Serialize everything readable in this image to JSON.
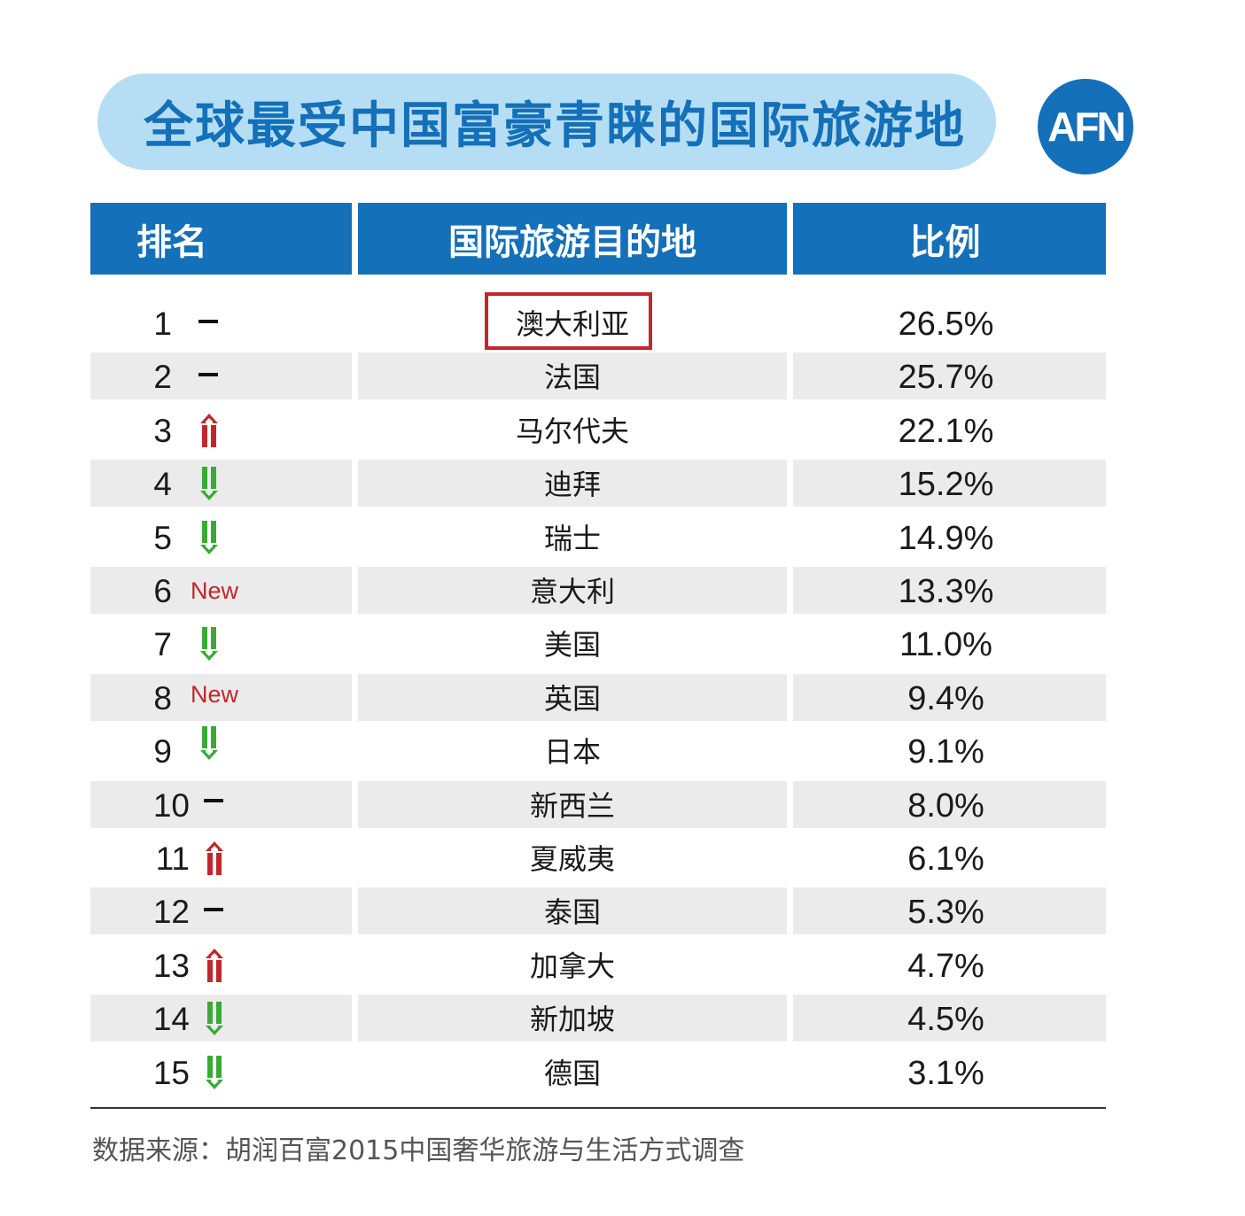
{
  "title": "全球最受中国富豪青睐的国际旅游地",
  "logo": "AFN",
  "headers": {
    "rank": "排名",
    "destination": "国际旅游目的地",
    "ratio": "比例"
  },
  "colors": {
    "header_bg": "#1470b8",
    "banner_bg": "#b5def5",
    "up": "#c0272d",
    "down": "#3aaa35",
    "new": "#c0272d",
    "highlight": "#c0272d"
  },
  "highlighted_row": 1,
  "chart_data": {
    "type": "table",
    "title": "全球最受中国富豪青睐的国际旅游地",
    "columns": [
      "排名",
      "国际旅游目的地",
      "比例"
    ],
    "rows": [
      {
        "rank": "1",
        "trend": "same",
        "destination": "澳大利亚",
        "percent": "26.5%",
        "value": 26.5
      },
      {
        "rank": "2",
        "trend": "same",
        "destination": "法国",
        "percent": "25.7%",
        "value": 25.7
      },
      {
        "rank": "3",
        "trend": "up",
        "destination": "马尔代夫",
        "percent": "22.1%",
        "value": 22.1
      },
      {
        "rank": "4",
        "trend": "down",
        "destination": "迪拜",
        "percent": "15.2%",
        "value": 15.2
      },
      {
        "rank": "5",
        "trend": "down",
        "destination": "瑞士",
        "percent": "14.9%",
        "value": 14.9
      },
      {
        "rank": "6",
        "trend": "new",
        "trend_label": "New",
        "destination": "意大利",
        "percent": "13.3%",
        "value": 13.3
      },
      {
        "rank": "7",
        "trend": "down",
        "destination": "美国",
        "percent": "11.0%",
        "value": 11.0
      },
      {
        "rank": "8",
        "trend": "new",
        "trend_label": "New",
        "destination": "英国",
        "percent": "9.4%",
        "value": 9.4
      },
      {
        "rank": "9",
        "trend": "down",
        "destination": "日本",
        "percent": "9.1%",
        "value": 9.1
      },
      {
        "rank": "10",
        "trend": "same",
        "destination": "新西兰",
        "percent": "8.0%",
        "value": 8.0
      },
      {
        "rank": "11",
        "trend": "up",
        "destination": "夏威夷",
        "percent": "6.1%",
        "value": 6.1
      },
      {
        "rank": "12",
        "trend": "same",
        "destination": "泰国",
        "percent": "5.3%",
        "value": 5.3
      },
      {
        "rank": "13",
        "trend": "up",
        "destination": "加拿大",
        "percent": "4.7%",
        "value": 4.7
      },
      {
        "rank": "14",
        "trend": "down",
        "destination": "新加坡",
        "percent": "4.5%",
        "value": 4.5
      },
      {
        "rank": "15",
        "trend": "down",
        "destination": "德国",
        "percent": "3.1%",
        "value": 3.1
      }
    ]
  },
  "source": "数据来源：胡润百富2015中国奢华旅游与生活方式调查"
}
